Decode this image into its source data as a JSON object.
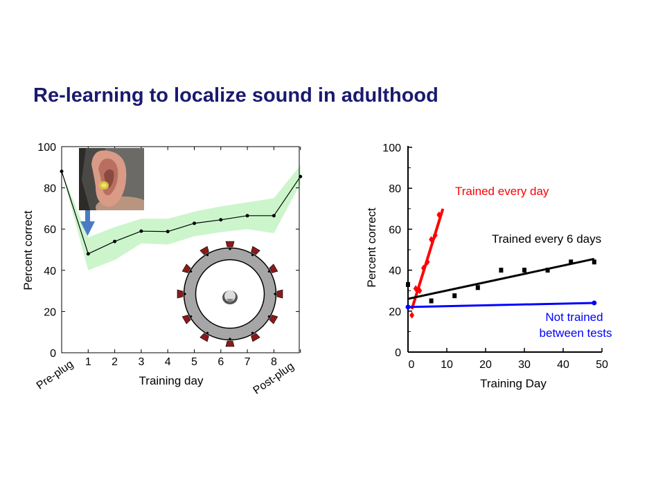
{
  "slide": {
    "title": "Re-learning to localize sound in adulthood"
  },
  "colors": {
    "title": "#1a1a6e",
    "band": "#ccf5cc",
    "arrow": "#4a7bc4",
    "trained_every_day": "#ff0000",
    "trained_every_6_days": "#000000",
    "not_trained": "#0000ff",
    "speaker": "#8b1a1a",
    "ring": "#a6a6a6"
  },
  "chart_data": [
    {
      "type": "line",
      "title": "",
      "xlabel": "Training day",
      "ylabel": "Percent correct",
      "ylim": [
        0,
        100
      ],
      "yticks": [
        0,
        20,
        40,
        60,
        80,
        100
      ],
      "x": [
        0,
        1,
        2,
        3,
        4,
        5,
        6,
        7,
        8,
        9
      ],
      "xticklabels": [
        "Pre-plug",
        "1",
        "2",
        "3",
        "4",
        "5",
        "6",
        "7",
        "8",
        "Post-plug"
      ],
      "series": [
        {
          "values": [
            88,
            48,
            54,
            59,
            58.8,
            62.8,
            64.5,
            66.5,
            66.5,
            85.5
          ],
          "band_upper": [
            88,
            56,
            61,
            65,
            65,
            68.5,
            71,
            73,
            75,
            91
          ],
          "band_lower": [
            88,
            40,
            45,
            53,
            52.5,
            56.5,
            58.5,
            60,
            58,
            82
          ]
        }
      ],
      "grid": false,
      "icons": [
        "ear-photo-inset",
        "down-arrow-icon",
        "speaker-ring-diagram"
      ]
    },
    {
      "type": "scatter",
      "title": "",
      "xlabel": "Training Day",
      "ylabel": "Percent correct",
      "xlim": [
        0,
        50
      ],
      "ylim": [
        0,
        100
      ],
      "xticks": [
        0,
        10,
        20,
        30,
        40,
        50
      ],
      "yticks": [
        0,
        20,
        40,
        60,
        80,
        100
      ],
      "grid": false,
      "series": [
        {
          "name": "Trained every day",
          "points": [
            [
              1,
              18
            ],
            [
              2,
              31
            ],
            [
              3,
              30
            ],
            [
              4,
              41
            ],
            [
              5,
              44
            ],
            [
              6,
              55
            ],
            [
              7,
              57
            ],
            [
              8,
              67
            ]
          ],
          "fit": [
            [
              1,
              21
            ],
            [
              9,
              70
            ]
          ]
        },
        {
          "name": "Trained every 6 days",
          "points": [
            [
              0,
              33
            ],
            [
              6,
              25
            ],
            [
              12,
              27.5
            ],
            [
              18,
              31.5
            ],
            [
              24,
              40
            ],
            [
              30,
              40
            ],
            [
              36,
              40
            ],
            [
              42,
              44
            ],
            [
              48,
              44
            ]
          ],
          "fit": [
            [
              0,
              26
            ],
            [
              48,
              45.5
            ]
          ]
        },
        {
          "name_lines": [
            "Not trained",
            "between tests"
          ],
          "points": [
            [
              0,
              22
            ],
            [
              48,
              24
            ]
          ],
          "fit": [
            [
              0,
              22
            ],
            [
              48,
              24
            ]
          ]
        }
      ]
    }
  ]
}
